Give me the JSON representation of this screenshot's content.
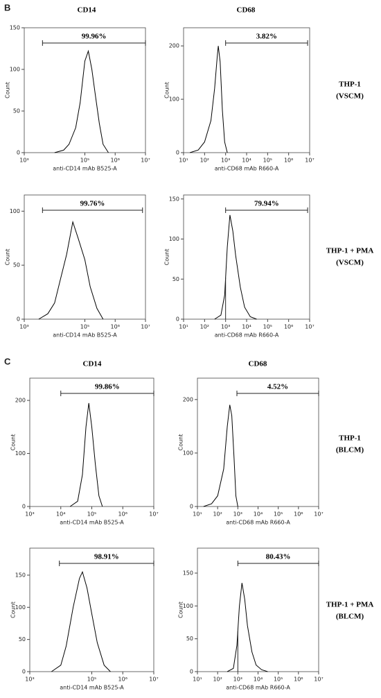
{
  "figure": {
    "panels": [
      {
        "label": "B",
        "columns": [
          "CD14",
          "CD68"
        ],
        "rows": [
          [
            "THP-1",
            "(VSCM)"
          ],
          [
            "THP-1 + PMA",
            "(VSCM)"
          ]
        ]
      },
      {
        "label": "C",
        "columns": [
          "CD14",
          "CD68"
        ],
        "rows": [
          [
            "THP-1",
            "(BLCM)"
          ],
          [
            "THP-1 + PMA",
            "(BLCM)"
          ]
        ]
      }
    ]
  },
  "chart_data": [
    {
      "type": "line",
      "xlabel": "anti-CD14 mAb B525-A",
      "ylabel": "Count",
      "xscale": "log",
      "color": "#000000",
      "x": [
        10000,
        20000,
        30000,
        50000,
        70000,
        100000,
        130000,
        170000,
        220000,
        300000,
        400000,
        600000
      ],
      "values": [
        0,
        3,
        10,
        30,
        60,
        110,
        122,
        100,
        70,
        35,
        10,
        0
      ],
      "xlim": [
        1000,
        10000000
      ],
      "ylim": [
        0,
        150
      ],
      "xticks": [
        {
          "value": 1000,
          "label": "10³"
        },
        {
          "value": 100000,
          "label": "10⁵"
        },
        {
          "value": 1000000,
          "label": "10⁶"
        },
        {
          "value": 10000000,
          "label": "10⁷"
        }
      ],
      "yticks": [
        0,
        50,
        100,
        150
      ],
      "gate": {
        "x": [
          4000,
          10000000
        ],
        "label": "99.96%"
      }
    },
    {
      "type": "line",
      "xlabel": "anti-CD68 mAb R660-A",
      "ylabel": "Count",
      "xscale": "log",
      "color": "#000000",
      "x": [
        20,
        50,
        100,
        200,
        300,
        400,
        450,
        550,
        700,
        900,
        1200
      ],
      "values": [
        0,
        5,
        20,
        60,
        120,
        180,
        200,
        170,
        80,
        20,
        0
      ],
      "xlim": [
        10,
        10000000
      ],
      "ylim": [
        0,
        234
      ],
      "xticks": [
        {
          "value": 10,
          "label": "10¹"
        },
        {
          "value": 100,
          "label": "10²"
        },
        {
          "value": 1000,
          "label": "10³"
        },
        {
          "value": 10000,
          "label": "10⁴"
        },
        {
          "value": 100000,
          "label": "10⁵"
        },
        {
          "value": 1000000,
          "label": "10⁶"
        },
        {
          "value": 10000000,
          "label": "10⁷"
        }
      ],
      "yticks": [
        0,
        100,
        200
      ],
      "gate": {
        "x": [
          1000,
          8000000
        ],
        "label": "3.82%"
      }
    },
    {
      "type": "line",
      "xlabel": "anti-CD14 mAb B525-A",
      "ylabel": "Count",
      "xscale": "log",
      "color": "#000000",
      "x": [
        3000,
        6000,
        10000,
        15000,
        25000,
        40000,
        60000,
        100000,
        150000,
        250000,
        400000
      ],
      "values": [
        0,
        5,
        15,
        35,
        60,
        90,
        75,
        55,
        30,
        10,
        0
      ],
      "xlim": [
        1000,
        10000000
      ],
      "ylim": [
        0,
        115
      ],
      "xticks": [
        {
          "value": 1000,
          "label": "10³"
        },
        {
          "value": 100000,
          "label": "10⁵"
        },
        {
          "value": 1000000,
          "label": "10⁶"
        },
        {
          "value": 10000000,
          "label": "10⁷"
        }
      ],
      "yticks": [
        0,
        50,
        100
      ],
      "gate": {
        "x": [
          4000,
          8000000
        ],
        "label": "99.76%"
      }
    },
    {
      "type": "line",
      "xlabel": "anti-CD68 mAb R660-A",
      "ylabel": "Count",
      "xscale": "log",
      "color": "#000000",
      "x": [
        300,
        600,
        900,
        1200,
        1600,
        2200,
        3000,
        5000,
        8000,
        15000,
        30000
      ],
      "values": [
        0,
        5,
        30,
        90,
        130,
        110,
        80,
        40,
        15,
        3,
        0
      ],
      "xlim": [
        10,
        10000000
      ],
      "ylim": [
        0,
        155
      ],
      "xticks": [
        {
          "value": 10,
          "label": "10¹"
        },
        {
          "value": 100,
          "label": "10²"
        },
        {
          "value": 1000,
          "label": "10³"
        },
        {
          "value": 10000,
          "label": "10⁴"
        },
        {
          "value": 100000,
          "label": "10⁵"
        },
        {
          "value": 1000000,
          "label": "10⁶"
        },
        {
          "value": 10000000,
          "label": "10⁷"
        }
      ],
      "yticks": [
        0,
        50,
        100,
        150
      ],
      "gate": {
        "x": [
          1000,
          8000000
        ],
        "label": "79.94%",
        "marker": true
      }
    },
    {
      "type": "line",
      "xlabel": "anti-CD14 mAb B525-A",
      "ylabel": "Count",
      "xscale": "log",
      "color": "#000000",
      "x": [
        20000,
        35000,
        50000,
        65000,
        80000,
        100000,
        130000,
        170000,
        220000
      ],
      "values": [
        0,
        10,
        60,
        150,
        195,
        150,
        80,
        20,
        0
      ],
      "xlim": [
        1000,
        10000000
      ],
      "ylim": [
        0,
        242
      ],
      "xticks": [
        {
          "value": 1000,
          "label": "10³"
        },
        {
          "value": 10000,
          "label": "10⁴"
        },
        {
          "value": 100000,
          "label": "10⁵"
        },
        {
          "value": 1000000,
          "label": "10⁶"
        },
        {
          "value": 10000000,
          "label": "10⁷"
        }
      ],
      "yticks": [
        0,
        100,
        200
      ],
      "gate": {
        "x": [
          10000,
          10000000
        ],
        "label": "99.86%"
      }
    },
    {
      "type": "line",
      "xlabel": "anti-CD68 mAb R660-A",
      "ylabel": "Count",
      "xscale": "log",
      "color": "#000000",
      "x": [
        20,
        50,
        100,
        200,
        300,
        400,
        500,
        650,
        800,
        1000
      ],
      "values": [
        0,
        5,
        20,
        70,
        150,
        190,
        170,
        90,
        20,
        0
      ],
      "xlim": [
        10,
        10000000
      ],
      "ylim": [
        0,
        240
      ],
      "xticks": [
        {
          "value": 10,
          "label": "10¹"
        },
        {
          "value": 100,
          "label": "10²"
        },
        {
          "value": 1000,
          "label": "10³"
        },
        {
          "value": 10000,
          "label": "10⁴"
        },
        {
          "value": 100000,
          "label": "10⁵"
        },
        {
          "value": 1000000,
          "label": "10⁶"
        },
        {
          "value": 10000000,
          "label": "10⁷"
        }
      ],
      "yticks": [
        0,
        100,
        200
      ],
      "gate": {
        "x": [
          900,
          10000000
        ],
        "label": "4.52%"
      }
    },
    {
      "type": "line",
      "xlabel": "anti-CD14 mAb B525-A",
      "ylabel": "Count",
      "xscale": "log",
      "color": "#000000",
      "x": [
        5000,
        10000,
        15000,
        25000,
        40000,
        50000,
        70000,
        100000,
        150000,
        250000,
        400000
      ],
      "values": [
        0,
        10,
        40,
        100,
        145,
        155,
        130,
        90,
        45,
        10,
        0
      ],
      "xlim": [
        1000,
        10000000
      ],
      "ylim": [
        0,
        192
      ],
      "xticks": [
        {
          "value": 1000,
          "label": "10³"
        },
        {
          "value": 100000,
          "label": "10⁵"
        },
        {
          "value": 1000000,
          "label": "10⁶"
        },
        {
          "value": 10000000,
          "label": "10⁷"
        }
      ],
      "yticks": [
        0,
        50,
        100,
        150
      ],
      "gate": {
        "x": [
          9000,
          10000000
        ],
        "label": "98.91%"
      }
    },
    {
      "type": "line",
      "xlabel": "anti-CD68 mAb R660-A",
      "ylabel": "Count",
      "xscale": "log",
      "color": "#000000",
      "x": [
        300,
        600,
        900,
        1200,
        1600,
        2200,
        3000,
        5000,
        8000,
        15000,
        30000
      ],
      "values": [
        0,
        5,
        40,
        100,
        135,
        110,
        70,
        30,
        10,
        3,
        0
      ],
      "xlim": [
        10,
        10000000
      ],
      "ylim": [
        0,
        188
      ],
      "xticks": [
        {
          "value": 10,
          "label": "10¹"
        },
        {
          "value": 100,
          "label": "10²"
        },
        {
          "value": 1000,
          "label": "10³"
        },
        {
          "value": 10000,
          "label": "10⁴"
        },
        {
          "value": 100000,
          "label": "10⁵"
        },
        {
          "value": 1000000,
          "label": "10⁶"
        },
        {
          "value": 10000000,
          "label": "10⁷"
        }
      ],
      "yticks": [
        0,
        50,
        100,
        150
      ],
      "gate": {
        "x": [
          1000,
          10000000
        ],
        "label": "80.43%",
        "marker": true
      }
    }
  ]
}
